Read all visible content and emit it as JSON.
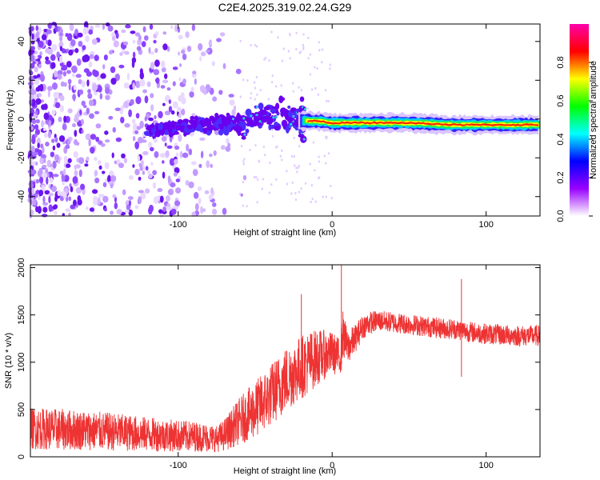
{
  "title": "C2E4.2025.319.02.24.G29",
  "chart_data": [
    {
      "type": "heatmap",
      "xlabel": "Height of straight line (km)",
      "ylabel": "Frequency (Hz)",
      "xlim": [
        -196,
        135
      ],
      "ylim": [
        -50,
        49
      ],
      "x_ticks": [
        -100,
        0,
        100
      ],
      "x_tick_labels": [
        "-100",
        "0",
        "100"
      ],
      "y_ticks": [
        -40,
        -20,
        0,
        20,
        40
      ],
      "y_tick_labels": [
        "-40",
        "-20",
        "0",
        "20",
        "40"
      ],
      "description_of_content": "spectral amplitude vs height and frequency; broad noise below -75 km, echo concentrated near 0 Hz above -20 km",
      "colorbar": {
        "label": "Normalized spectral amplitude",
        "range": [
          0,
          1
        ],
        "ticks": [
          0.0,
          0.2,
          0.4,
          0.6,
          0.8
        ],
        "tick_labels": [
          "0.0",
          "0.2",
          "0.4",
          "0.6",
          "0.8"
        ],
        "colors": [
          "#ffffff",
          "#9900ff",
          "#0000ff",
          "#00ffff",
          "#00ff00",
          "#ffff00",
          "#ff0000",
          "#ff00aa"
        ]
      },
      "line_profile": {
        "heights": [
          -120,
          -100,
          -80,
          -60,
          -40,
          -20,
          -10,
          0,
          20,
          50,
          80,
          110,
          135
        ],
        "frequency": [
          -6,
          -4,
          -3,
          -2,
          2,
          -1,
          -1,
          -2,
          -2,
          -2,
          -3,
          -3,
          -3
        ]
      }
    },
    {
      "type": "line",
      "xlabel": "Height of straight line (km)",
      "ylabel": "SNR (10 * v/v)",
      "xlim": [
        -196,
        135
      ],
      "ylim": [
        0,
        2030
      ],
      "x_ticks": [
        -100,
        0,
        100
      ],
      "x_tick_labels": [
        "-100",
        "0",
        "100"
      ],
      "y_ticks": [
        0,
        500,
        1000,
        1500,
        2000
      ],
      "y_tick_labels": [
        "0",
        "500",
        "1000",
        "1500",
        "2000"
      ],
      "color": "#ee3333",
      "series": [
        {
          "name": "SNR",
          "x": [
            -196,
            -180,
            -160,
            -140,
            -120,
            -100,
            -90,
            -80,
            -75,
            -70,
            -60,
            -50,
            -40,
            -30,
            -20,
            -15,
            -10,
            -5,
            0,
            5,
            7,
            10,
            15,
            20,
            25,
            30,
            40,
            50,
            60,
            70,
            80,
            90,
            100,
            110,
            120,
            135
          ],
          "mean": [
            300,
            290,
            280,
            260,
            240,
            220,
            215,
            200,
            190,
            230,
            380,
            500,
            650,
            820,
            950,
            1000,
            1050,
            1080,
            1100,
            1050,
            1300,
            1150,
            1250,
            1380,
            1420,
            1440,
            1420,
            1400,
            1380,
            1360,
            1350,
            1320,
            1300,
            1290,
            1280,
            1280
          ],
          "spread": [
            220,
            220,
            210,
            200,
            180,
            170,
            160,
            150,
            140,
            170,
            250,
            300,
            330,
            350,
            340,
            330,
            300,
            260,
            220,
            200,
            250,
            180,
            150,
            130,
            120,
            110,
            110,
            110,
            110,
            110,
            110,
            110,
            110,
            110,
            110,
            110
          ]
        }
      ],
      "peaks": [
        {
          "x": 6,
          "y": 2030
        },
        {
          "x": -20,
          "y": 1720
        },
        {
          "x": 84,
          "y": 1880
        }
      ]
    }
  ]
}
